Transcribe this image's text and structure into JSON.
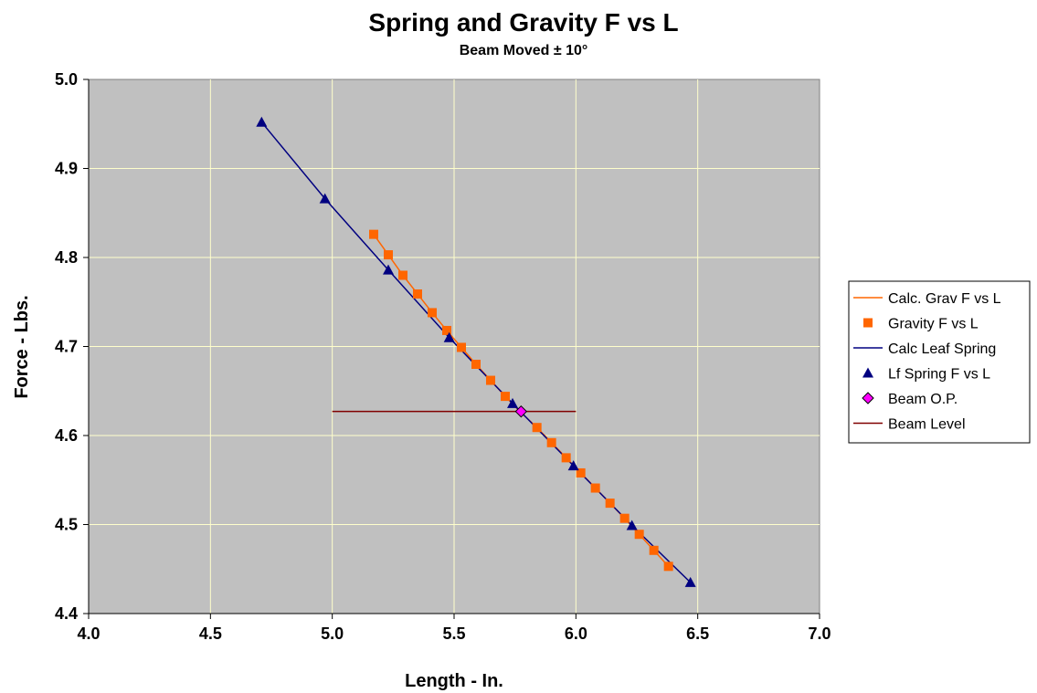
{
  "chart_data": {
    "type": "scatter",
    "title": "Spring and Gravity F vs L",
    "subtitle": "Beam Moved ± 10°",
    "xlabel": "Length - In.",
    "ylabel": "Force - Lbs.",
    "xlim": [
      4.0,
      7.0
    ],
    "ylim": [
      4.4,
      5.0
    ],
    "xticks": [
      "4.0",
      "4.5",
      "5.0",
      "5.5",
      "6.0",
      "6.5",
      "7.0"
    ],
    "yticks": [
      "4.4",
      "4.5",
      "4.6",
      "4.7",
      "4.8",
      "4.9",
      "5.0"
    ],
    "grid": true,
    "plot_background": "#c0c0c0",
    "grid_color": "#ffffcc",
    "legend_position": "right",
    "series": [
      {
        "name": "Calc. Grav F vs L",
        "kind": "line",
        "color": "#ff6600",
        "x": [
          5.17,
          5.23,
          5.29,
          5.35,
          5.41,
          5.47,
          5.53,
          5.59,
          5.65,
          5.71,
          5.77,
          5.84,
          5.9,
          5.96,
          6.02,
          6.08,
          6.14,
          6.2,
          6.26,
          6.32,
          6.38
        ],
        "y": [
          4.826,
          4.803,
          4.78,
          4.759,
          4.738,
          4.718,
          4.699,
          4.68,
          4.662,
          4.644,
          4.627,
          4.609,
          4.592,
          4.575,
          4.558,
          4.541,
          4.524,
          4.507,
          4.489,
          4.471,
          4.453
        ]
      },
      {
        "name": "Gravity F vs L",
        "kind": "marker",
        "marker": "square",
        "color": "#ff6600",
        "x": [
          5.17,
          5.23,
          5.29,
          5.35,
          5.41,
          5.47,
          5.53,
          5.59,
          5.65,
          5.71,
          5.84,
          5.9,
          5.96,
          6.02,
          6.08,
          6.14,
          6.2,
          6.26,
          6.32,
          6.38
        ],
        "y": [
          4.826,
          4.803,
          4.78,
          4.759,
          4.738,
          4.718,
          4.699,
          4.68,
          4.662,
          4.644,
          4.609,
          4.592,
          4.575,
          4.558,
          4.541,
          4.524,
          4.507,
          4.489,
          4.471,
          4.453
        ]
      },
      {
        "name": "Calc Leaf Spring",
        "kind": "line",
        "color": "#000080",
        "x": [
          4.71,
          4.97,
          5.23,
          5.48,
          5.74,
          5.99,
          6.23,
          6.47
        ],
        "y": [
          4.952,
          4.866,
          4.786,
          4.71,
          4.636,
          4.566,
          4.499,
          4.435
        ]
      },
      {
        "name": "Lf Spring F vs L",
        "kind": "marker",
        "marker": "triangle",
        "color": "#000080",
        "x": [
          4.71,
          4.97,
          5.23,
          5.48,
          5.74,
          5.99,
          6.23,
          6.47
        ],
        "y": [
          4.952,
          4.866,
          4.786,
          4.71,
          4.636,
          4.566,
          4.499,
          4.435
        ]
      },
      {
        "name": "Beam O.P.",
        "kind": "marker",
        "marker": "diamond",
        "color": "#ff00ff",
        "x": [
          5.775
        ],
        "y": [
          4.627
        ]
      },
      {
        "name": "Beam Level",
        "kind": "line",
        "color": "#800000",
        "x": [
          5.0,
          6.0
        ],
        "y": [
          4.627,
          4.627
        ]
      }
    ]
  }
}
